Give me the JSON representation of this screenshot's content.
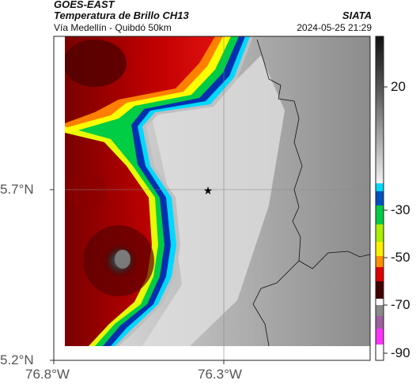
{
  "header": {
    "source": "GOES-EAST",
    "product": "Temperatura de Brillo CH13",
    "route": "Vía Medellín - Quibdó 50km",
    "agency": "SIATA",
    "timestamp": "2024-05-25 21:29"
  },
  "axes": {
    "y_ticks": [
      "5.7°N",
      "5.2°N"
    ],
    "x_ticks": [
      "76.8°W",
      "76.3°W"
    ]
  },
  "colorbar": {
    "ticks": [
      "20",
      "-30",
      "-50",
      "-70",
      "-90"
    ],
    "stops": [
      {
        "value": 30,
        "color": "#1a1a1a"
      },
      {
        "value": 20,
        "color": "#4a4a4a"
      },
      {
        "value": 0,
        "color": "#9a9a9a"
      },
      {
        "value": -20,
        "color": "#f4f4f4"
      },
      {
        "value": -23,
        "color": "#00e0ff"
      },
      {
        "value": -30,
        "color": "#0030b0"
      },
      {
        "value": -38,
        "color": "#00ff00"
      },
      {
        "value": -50,
        "color": "#ffff00"
      },
      {
        "value": -58,
        "color": "#ff8000"
      },
      {
        "value": -64,
        "color": "#e00000"
      },
      {
        "value": -70,
        "color": "#300000"
      },
      {
        "value": -75,
        "color": "#ffffff"
      },
      {
        "value": -82,
        "color": "#808080"
      },
      {
        "value": -90,
        "color": "#ff00ff"
      }
    ]
  },
  "map": {
    "marker": "star-icon"
  }
}
